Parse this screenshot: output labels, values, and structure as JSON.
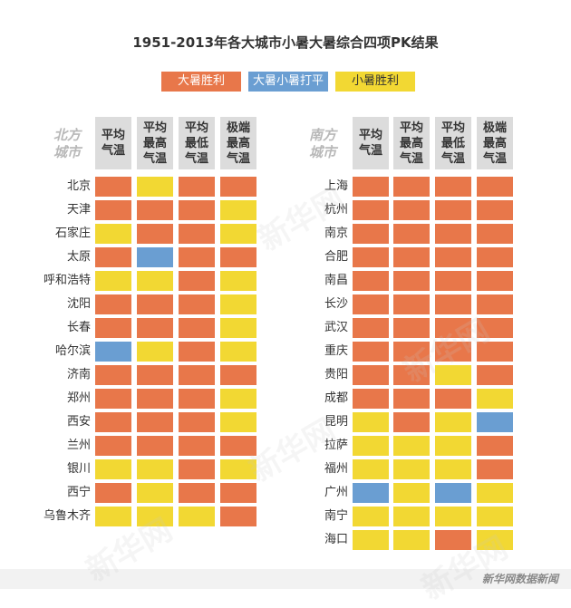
{
  "colors": {
    "orange": "#e8774a",
    "blue": "#6a9ed2",
    "yellow": "#f2d833",
    "header_gray": "#dcdcdc"
  },
  "chart_data": {
    "type": "table",
    "title": "1951-2013年各大城市小暑大暑综合四项PK结果",
    "legend": [
      {
        "key": "O",
        "label": "大暑胜利",
        "color": "#e8774a"
      },
      {
        "key": "B",
        "label": "大暑小暑打平",
        "color": "#6a9ed2"
      },
      {
        "key": "Y",
        "label": "小暑胜利",
        "color": "#f2d833"
      }
    ],
    "columns": [
      "平均\n气温",
      "平均\n最高\n气温",
      "平均\n最低\n气温",
      "极端\n最高\n气温"
    ],
    "regions": [
      {
        "label": "北方\n城市",
        "cities": [
          {
            "name": "北京",
            "results": [
              "O",
              "Y",
              "O",
              "O"
            ]
          },
          {
            "name": "天津",
            "results": [
              "O",
              "O",
              "O",
              "Y"
            ]
          },
          {
            "name": "石家庄",
            "results": [
              "Y",
              "O",
              "O",
              "Y"
            ]
          },
          {
            "name": "太原",
            "results": [
              "O",
              "B",
              "O",
              "O"
            ]
          },
          {
            "name": "呼和浩特",
            "results": [
              "Y",
              "Y",
              "O",
              "Y"
            ]
          },
          {
            "name": "沈阳",
            "results": [
              "O",
              "O",
              "O",
              "Y"
            ]
          },
          {
            "name": "长春",
            "results": [
              "O",
              "O",
              "O",
              "Y"
            ]
          },
          {
            "name": "哈尔滨",
            "results": [
              "B",
              "Y",
              "O",
              "Y"
            ]
          },
          {
            "name": "济南",
            "results": [
              "O",
              "O",
              "O",
              "O"
            ]
          },
          {
            "name": "郑州",
            "results": [
              "O",
              "O",
              "O",
              "Y"
            ]
          },
          {
            "name": "西安",
            "results": [
              "O",
              "O",
              "O",
              "Y"
            ]
          },
          {
            "name": "兰州",
            "results": [
              "O",
              "O",
              "O",
              "O"
            ]
          },
          {
            "name": "银川",
            "results": [
              "Y",
              "Y",
              "O",
              "Y"
            ]
          },
          {
            "name": "西宁",
            "results": [
              "O",
              "Y",
              "O",
              "O"
            ]
          },
          {
            "name": "乌鲁木齐",
            "results": [
              "Y",
              "Y",
              "Y",
              "O"
            ]
          }
        ]
      },
      {
        "label": "南方\n城市",
        "cities": [
          {
            "name": "上海",
            "results": [
              "O",
              "O",
              "O",
              "O"
            ]
          },
          {
            "name": "杭州",
            "results": [
              "O",
              "O",
              "O",
              "O"
            ]
          },
          {
            "name": "南京",
            "results": [
              "O",
              "O",
              "O",
              "O"
            ]
          },
          {
            "name": "合肥",
            "results": [
              "O",
              "O",
              "O",
              "O"
            ]
          },
          {
            "name": "南昌",
            "results": [
              "O",
              "O",
              "O",
              "O"
            ]
          },
          {
            "name": "长沙",
            "results": [
              "O",
              "O",
              "O",
              "O"
            ]
          },
          {
            "name": "武汉",
            "results": [
              "O",
              "O",
              "O",
              "O"
            ]
          },
          {
            "name": "重庆",
            "results": [
              "O",
              "O",
              "O",
              "O"
            ]
          },
          {
            "name": "贵阳",
            "results": [
              "O",
              "O",
              "Y",
              "O"
            ]
          },
          {
            "name": "成都",
            "results": [
              "O",
              "O",
              "O",
              "Y"
            ]
          },
          {
            "name": "昆明",
            "results": [
              "Y",
              "O",
              "Y",
              "B"
            ]
          },
          {
            "name": "拉萨",
            "results": [
              "Y",
              "Y",
              "Y",
              "O"
            ]
          },
          {
            "name": "福州",
            "results": [
              "Y",
              "Y",
              "Y",
              "O"
            ]
          },
          {
            "name": "广州",
            "results": [
              "B",
              "Y",
              "B",
              "Y"
            ]
          },
          {
            "name": "南宁",
            "results": [
              "Y",
              "Y",
              "Y",
              "Y"
            ]
          },
          {
            "name": "海口",
            "results": [
              "Y",
              "Y",
              "O",
              "Y"
            ]
          }
        ]
      }
    ]
  },
  "source": "新华网数据新闻",
  "watermark": "新华网"
}
